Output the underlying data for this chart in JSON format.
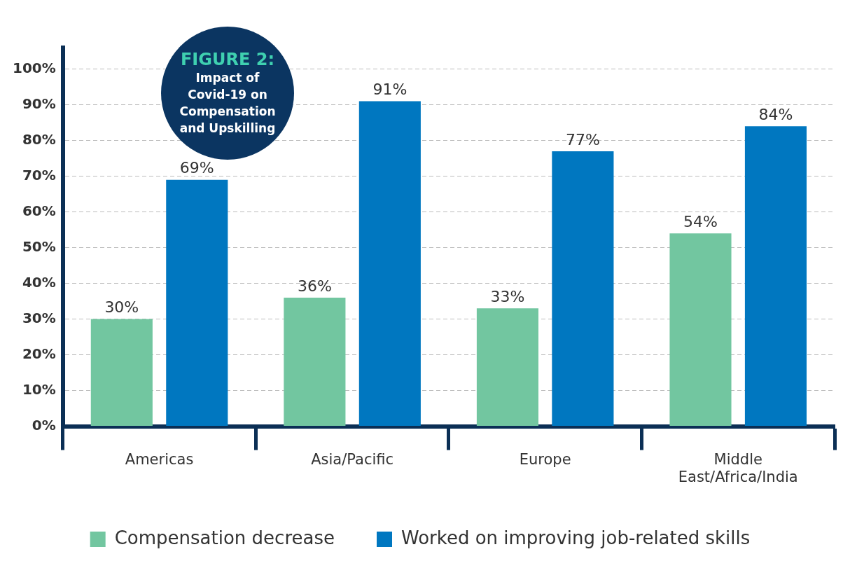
{
  "chart_data": {
    "type": "bar",
    "title": "FIGURE 2:",
    "subtitle": "Impact of Covid-19 on Compensation and Upskilling",
    "categories": [
      "Americas",
      "Asia/Pacific",
      "Europe",
      "Middle East/Africa/India"
    ],
    "series": [
      {
        "name": "Compensation decrease",
        "color": "#72c6a0",
        "values": [
          30,
          36,
          33,
          54
        ],
        "value_labels": [
          "30%",
          "36%",
          "33%",
          "54%"
        ]
      },
      {
        "name": "Worked on improving job-related skills",
        "color": "#0077c0",
        "values": [
          69,
          91,
          77,
          84
        ],
        "value_labels": [
          "69%",
          "91%",
          "77%",
          "84%"
        ]
      }
    ],
    "ylim": [
      0,
      106
    ],
    "yticks": [
      {
        "value": 0,
        "label": "0%"
      },
      {
        "value": 10,
        "label": "10%"
      },
      {
        "value": 20,
        "label": "20%"
      },
      {
        "value": 30,
        "label": "30%"
      },
      {
        "value": 40,
        "label": "40%"
      },
      {
        "value": 50,
        "label": "50%"
      },
      {
        "value": 60,
        "label": "60%"
      },
      {
        "value": 70,
        "label": "70%"
      },
      {
        "value": 80,
        "label": "80%"
      },
      {
        "value": 90,
        "label": "90%"
      },
      {
        "value": 100,
        "label": "100%"
      }
    ],
    "grid": "y",
    "legend": "bottom"
  }
}
